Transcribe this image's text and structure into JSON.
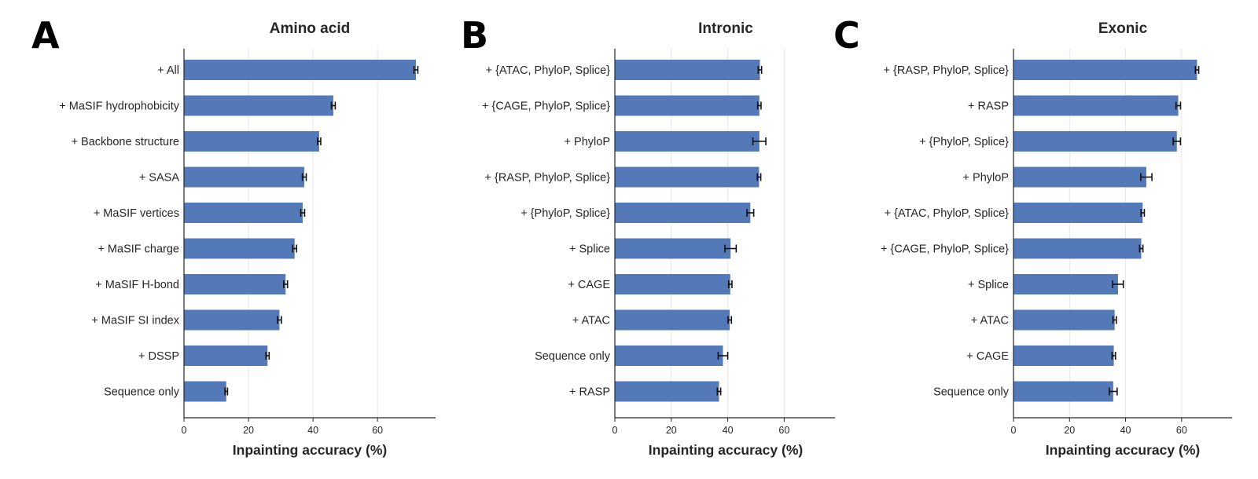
{
  "chart_data": [
    {
      "panel": "A",
      "type": "bar",
      "orientation": "horizontal",
      "title": "Amino acid",
      "xlabel": "Inpainting accuracy (%)",
      "xlim": [
        0,
        78
      ],
      "xticks": [
        0,
        20,
        40,
        60
      ],
      "grid": "vertical",
      "color": "#5479b9",
      "categories": [
        "+ All",
        "+ MaSIF hydrophobicity",
        "+ Backbone structure",
        "+ SASA",
        "+ MaSIF vertices",
        "+ MaSIF charge",
        "+ MaSIF H-bond",
        "+ MaSIF SI index",
        "+ DSSP",
        "Sequence only"
      ],
      "values": [
        71.9,
        46.3,
        41.9,
        37.3,
        36.8,
        34.3,
        31.5,
        29.6,
        25.9,
        13.1
      ],
      "errors": [
        0.6,
        0.6,
        0.5,
        0.6,
        0.6,
        0.6,
        0.6,
        0.6,
        0.5,
        0.4
      ]
    },
    {
      "panel": "B",
      "type": "bar",
      "orientation": "horizontal",
      "title": "Intronic",
      "xlabel": "Inpainting accuracy (%)",
      "xlim": [
        0,
        78
      ],
      "xticks": [
        0,
        20,
        40,
        60
      ],
      "grid": "vertical",
      "color": "#5479b9",
      "categories": [
        "+ {ATAC, PhyloP, Splice}",
        "+ {CAGE, PhyloP, Splice}",
        "+ PhyloP",
        "+ {RASP, PhyloP, Splice}",
        "+ {PhyloP, Splice}",
        "+ Splice",
        "+ CAGE",
        "+ ATAC",
        "Sequence only",
        "+ RASP"
      ],
      "values": [
        51.4,
        51.2,
        51.2,
        51.1,
        48.0,
        41.0,
        40.9,
        40.7,
        38.3,
        36.9
      ],
      "errors": [
        0.6,
        0.6,
        2.3,
        0.6,
        1.2,
        2.0,
        0.6,
        0.6,
        1.7,
        0.6
      ]
    },
    {
      "panel": "C",
      "type": "bar",
      "orientation": "horizontal",
      "title": "Exonic",
      "xlabel": "Inpainting accuracy (%)",
      "xlim": [
        0,
        78
      ],
      "xticks": [
        0,
        20,
        40,
        60
      ],
      "grid": "vertical",
      "color": "#5479b9",
      "categories": [
        "+ {RASP, PhyloP, Splice}",
        "+ RASP",
        "+ {PhyloP, Splice}",
        "+ PhyloP",
        "+ {ATAC, PhyloP, Splice}",
        "+ {CAGE, PhyloP, Splice}",
        "+ Splice",
        "+ ATAC",
        "+ CAGE",
        "Sequence only"
      ],
      "values": [
        65.5,
        58.8,
        58.3,
        47.4,
        46.1,
        45.6,
        37.3,
        36.1,
        35.8,
        35.6
      ],
      "errors": [
        0.6,
        0.8,
        1.3,
        2.0,
        0.6,
        0.6,
        1.9,
        0.6,
        0.6,
        1.4
      ]
    }
  ]
}
